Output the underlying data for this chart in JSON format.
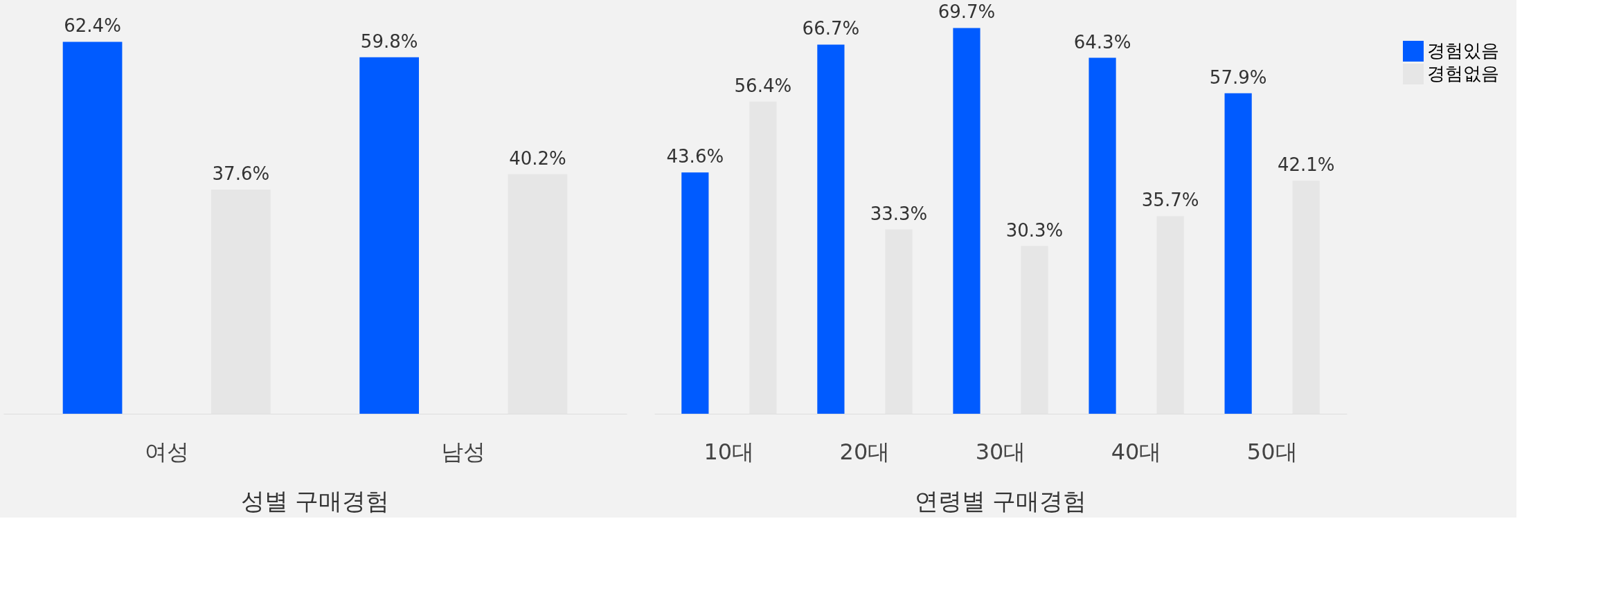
{
  "chart_data": [
    {
      "type": "bar",
      "title": "성별 구매경험",
      "categories": [
        "여성",
        "남성"
      ],
      "legend": "right",
      "series": [
        {
          "name": "경험있음",
          "color": "#005bff",
          "values": [
            62.4,
            59.8
          ],
          "value_labels": [
            "62.4%",
            "59.8%"
          ]
        },
        {
          "name": "경험없음",
          "color": "#e6e6e6",
          "values": [
            37.6,
            40.2
          ],
          "value_labels": [
            "37.6%",
            "40.2%"
          ]
        }
      ]
    },
    {
      "type": "bar",
      "title": "연령별 구매경험",
      "categories": [
        "10대",
        "20대",
        "30대",
        "40대",
        "50대"
      ],
      "legend": false,
      "series": [
        {
          "name": "경험있음",
          "color": "#005bff",
          "values": [
            43.6,
            66.7,
            69.7,
            64.3,
            57.9
          ],
          "value_labels": [
            "43.6%",
            "66.7%",
            "69.7%",
            "64.3%",
            "57.9%"
          ]
        },
        {
          "name": "경험없음",
          "color": "#e6e6e6",
          "values": [
            56.4,
            33.3,
            30.3,
            35.7,
            42.1
          ],
          "value_labels": [
            "56.4%",
            "33.3%",
            "30.3%",
            "35.7%",
            "42.1%"
          ]
        }
      ]
    }
  ]
}
